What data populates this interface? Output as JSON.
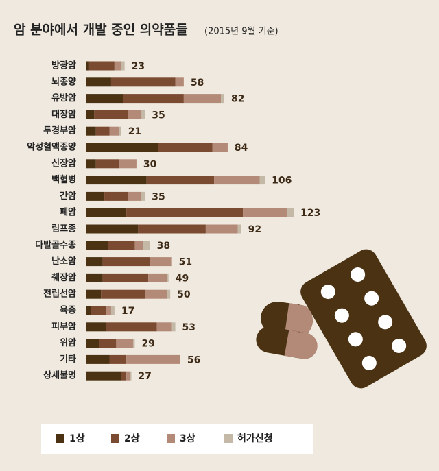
{
  "chart_data": {
    "type": "stacked-bar",
    "orientation": "horizontal",
    "title": "암 분야에서 개발 중인 의약품들",
    "subtitle": "(2015년 9월 기준)",
    "categories": [
      "방광암",
      "뇌종양",
      "유방암",
      "대장암",
      "두경부암",
      "악성혈액종양",
      "신장암",
      "백혈병",
      "간암",
      "폐암",
      "림프종",
      "다발골수종",
      "난소암",
      "췌장암",
      "전립선암",
      "육종",
      "피부암",
      "위암",
      "기타",
      "상세불명"
    ],
    "totals": [
      23,
      58,
      82,
      35,
      21,
      84,
      30,
      106,
      35,
      123,
      92,
      38,
      51,
      49,
      50,
      17,
      53,
      29,
      56,
      27
    ],
    "series": [
      {
        "name": "1상",
        "color": "#4a3213",
        "values": [
          2,
          15,
          22,
          5,
          6,
          43,
          6,
          36,
          11,
          24,
          31,
          13,
          10,
          10,
          9,
          3,
          12,
          8,
          14,
          21
        ]
      },
      {
        "name": "2상",
        "color": "#7b4b31",
        "values": [
          15,
          38,
          36,
          20,
          8,
          32,
          14,
          40,
          14,
          69,
          40,
          16,
          28,
          27,
          26,
          9,
          30,
          10,
          10,
          3
        ]
      },
      {
        "name": "3상",
        "color": "#b38a77",
        "values": [
          4,
          5,
          22,
          8,
          6,
          9,
          10,
          27,
          8,
          26,
          19,
          5,
          13,
          11,
          13,
          3,
          9,
          10,
          32,
          2
        ]
      },
      {
        "name": "허가신청",
        "color": "#c3b9a6",
        "values": [
          2,
          0,
          2,
          2,
          1,
          0,
          0,
          3,
          2,
          4,
          2,
          4,
          0,
          1,
          2,
          2,
          2,
          1,
          0,
          1
        ]
      }
    ]
  }
}
